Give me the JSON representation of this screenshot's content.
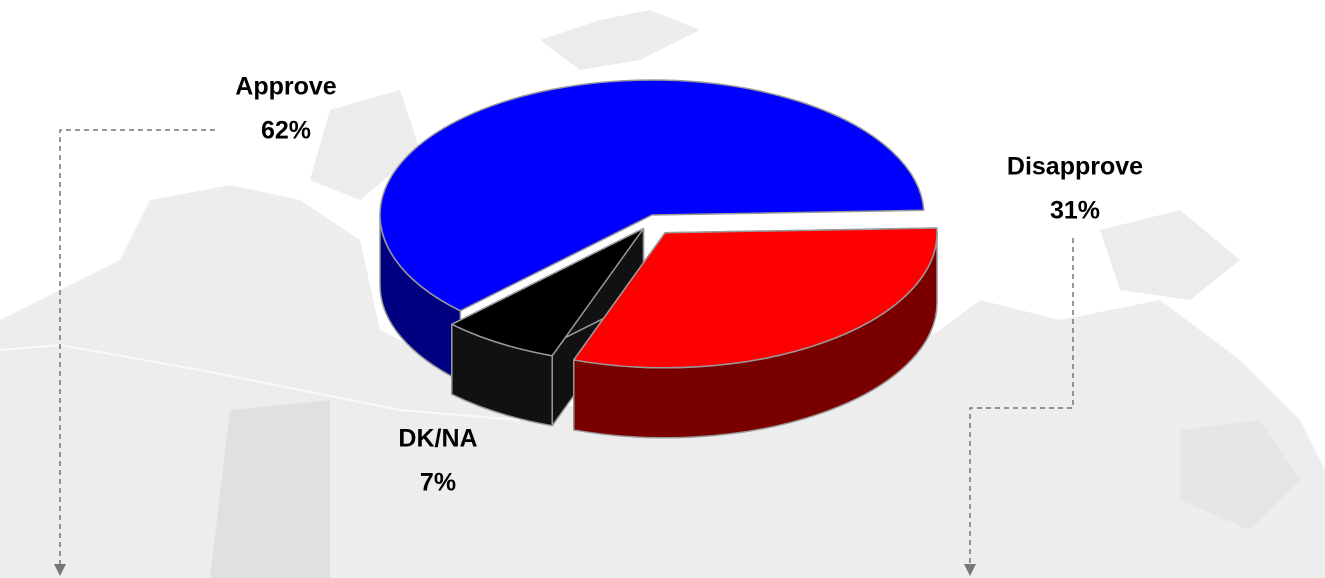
{
  "chart_data": {
    "type": "pie",
    "categories": [
      "Approve",
      "Disapprove",
      "DK/NA"
    ],
    "values": [
      62,
      31,
      7
    ],
    "value_labels": [
      "62%",
      "31%",
      "7%"
    ],
    "colors": [
      "#0000ff",
      "#ff0000",
      "#000000"
    ]
  }
}
